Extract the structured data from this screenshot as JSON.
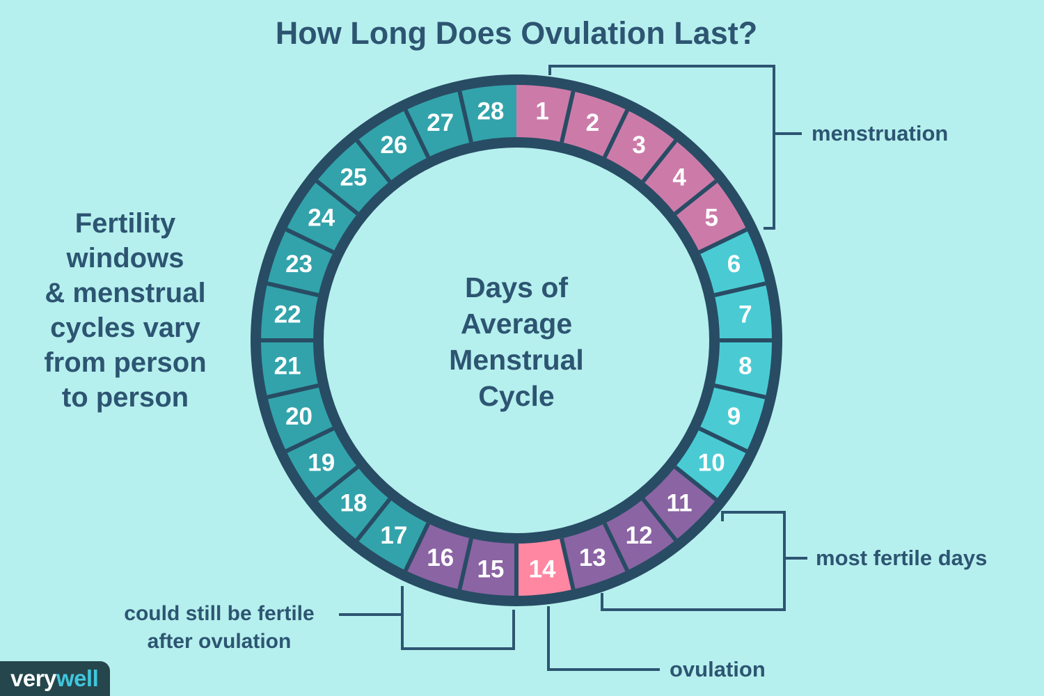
{
  "title": "How Long Does Ovulation Last?",
  "left_note": {
    "lines": [
      "Fertility",
      "windows",
      "& menstrual",
      "cycles vary",
      "from person",
      "to person"
    ]
  },
  "center_label": {
    "lines": [
      "Days of",
      "Average",
      "Menstrual",
      "Cycle"
    ]
  },
  "callouts": {
    "menstruation": "menstruation",
    "most_fertile": "most fertile days",
    "ovulation": "ovulation",
    "post_ovulation_line1": "could still be fertile",
    "post_ovulation_line2": "after ovulation"
  },
  "logo": {
    "prefix": "very",
    "suffix": "well"
  },
  "colors": {
    "background": "#b6f0ee",
    "ring_border": "#284c64",
    "text": "#2d5572",
    "number": "#ffffff",
    "menstruation": "#cc7ba9",
    "pre_ovulation": "#4acbd4",
    "most_fertile": "#8b64a4",
    "ovulation": "#ff87a2",
    "post_ovulation_fertile": "#8b64a4",
    "late_luteal": "#32a3ab",
    "logo_bg": "#25464c",
    "logo_prefix": "#ffffff",
    "logo_suffix": "#41c6dd"
  },
  "chart_data": {
    "type": "ring-calendar",
    "title": "Days of Average Menstrual Cycle",
    "days_total": 28,
    "segments": [
      {
        "day": 1,
        "phase": "menstruation"
      },
      {
        "day": 2,
        "phase": "menstruation"
      },
      {
        "day": 3,
        "phase": "menstruation"
      },
      {
        "day": 4,
        "phase": "menstruation"
      },
      {
        "day": 5,
        "phase": "menstruation"
      },
      {
        "day": 6,
        "phase": "pre_ovulation"
      },
      {
        "day": 7,
        "phase": "pre_ovulation"
      },
      {
        "day": 8,
        "phase": "pre_ovulation"
      },
      {
        "day": 9,
        "phase": "pre_ovulation"
      },
      {
        "day": 10,
        "phase": "pre_ovulation"
      },
      {
        "day": 11,
        "phase": "most_fertile"
      },
      {
        "day": 12,
        "phase": "most_fertile"
      },
      {
        "day": 13,
        "phase": "most_fertile"
      },
      {
        "day": 14,
        "phase": "ovulation"
      },
      {
        "day": 15,
        "phase": "post_ovulation_fertile"
      },
      {
        "day": 16,
        "phase": "post_ovulation_fertile"
      },
      {
        "day": 17,
        "phase": "late_luteal"
      },
      {
        "day": 18,
        "phase": "late_luteal"
      },
      {
        "day": 19,
        "phase": "late_luteal"
      },
      {
        "day": 20,
        "phase": "late_luteal"
      },
      {
        "day": 21,
        "phase": "late_luteal"
      },
      {
        "day": 22,
        "phase": "late_luteal"
      },
      {
        "day": 23,
        "phase": "late_luteal"
      },
      {
        "day": 24,
        "phase": "late_luteal"
      },
      {
        "day": 25,
        "phase": "late_luteal"
      },
      {
        "day": 26,
        "phase": "late_luteal"
      },
      {
        "day": 27,
        "phase": "late_luteal"
      },
      {
        "day": 28,
        "phase": "late_luteal"
      }
    ],
    "annotations": [
      {
        "label": "menstruation",
        "day_start": 1,
        "day_end": 5
      },
      {
        "label": "most fertile days",
        "day_start": 11,
        "day_end": 13
      },
      {
        "label": "ovulation",
        "day_start": 14,
        "day_end": 14
      },
      {
        "label": "could still be fertile after ovulation",
        "day_start": 15,
        "day_end": 16
      }
    ]
  }
}
